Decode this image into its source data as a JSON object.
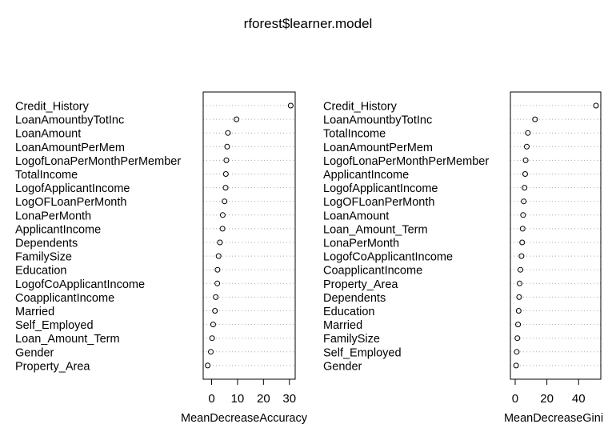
{
  "title": "rforest$learner.model",
  "chart_data": [
    {
      "type": "scatter",
      "plot_style": "dotchart",
      "xlabel": "MeanDecreaseAccuracy",
      "xlim": [
        -2,
        31
      ],
      "xticks": [
        0,
        10,
        20,
        30
      ],
      "grid": "dotted-horizontal",
      "categories": [
        "Credit_History",
        "LoanAmountbyTotInc",
        "LoanAmount",
        "LoanAmountPerMem",
        "LogofLonaPerMonthPerMember",
        "TotalIncome",
        "LogofApplicantIncome",
        "LogOFLoanPerMonth",
        "LonaPerMonth",
        "ApplicantIncome",
        "Dependents",
        "FamilySize",
        "Education",
        "LogofCoApplicantIncome",
        "CoapplicantIncome",
        "Married",
        "Self_Employed",
        "Loan_Amount_Term",
        "Gender",
        "Property_Area"
      ],
      "values": [
        30.5,
        9.6,
        6.3,
        6.0,
        5.7,
        5.5,
        5.4,
        5.0,
        4.3,
        4.2,
        3.2,
        2.7,
        2.3,
        2.2,
        1.6,
        1.3,
        0.6,
        0.2,
        -0.3,
        -1.5
      ]
    },
    {
      "type": "scatter",
      "plot_style": "dotchart",
      "xlabel": "MeanDecreaseGini",
      "xlim": [
        -1,
        52
      ],
      "xticks": [
        0,
        20,
        40
      ],
      "grid": "dotted-horizontal",
      "categories": [
        "Credit_History",
        "LoanAmountbyTotInc",
        "TotalIncome",
        "LoanAmountPerMem",
        "LogofLonaPerMonthPerMember",
        "ApplicantIncome",
        "LogofApplicantIncome",
        "LogOFLoanPerMonth",
        "LoanAmount",
        "Loan_Amount_Term",
        "LonaPerMonth",
        "LogofCoApplicantIncome",
        "CoapplicantIncome",
        "Property_Area",
        "Dependents",
        "Education",
        "Married",
        "FamilySize",
        "Self_Employed",
        "Gender"
      ],
      "values": [
        51,
        12.5,
        8.0,
        7.3,
        6.6,
        6.3,
        5.9,
        5.4,
        5.0,
        4.7,
        4.4,
        4.0,
        3.3,
        2.8,
        2.5,
        2.2,
        1.8,
        1.4,
        1.0,
        0.6
      ]
    }
  ]
}
